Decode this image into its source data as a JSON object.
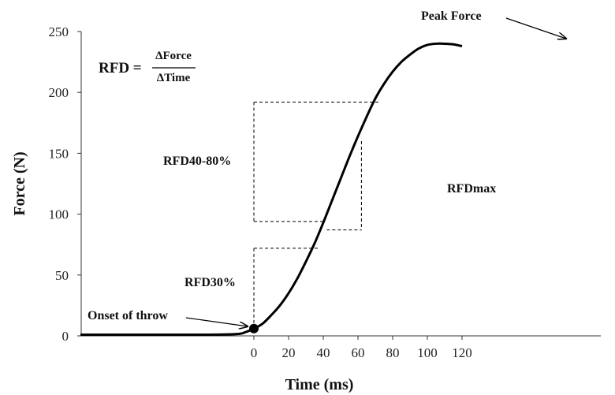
{
  "chart_data": {
    "type": "line",
    "title": "",
    "xlabel": "Time (ms)",
    "ylabel": "Force (N)",
    "xlim": [
      -100,
      120
    ],
    "ylim": [
      0,
      250
    ],
    "x_ticks": [
      0,
      20,
      40,
      60,
      80,
      100,
      120
    ],
    "y_ticks": [
      0,
      50,
      100,
      150,
      200,
      250
    ],
    "grid": false,
    "series": [
      {
        "x": [
          -100,
          -30,
          -10,
          -5,
          0,
          5,
          10,
          15,
          20,
          25,
          30,
          35,
          40,
          45,
          50,
          55,
          60,
          65,
          70,
          75,
          80,
          85,
          90,
          95,
          100,
          105,
          110,
          115,
          120
        ],
        "y": [
          1,
          1,
          1.5,
          3,
          6,
          10,
          17,
          25,
          35,
          47,
          61,
          76,
          93,
          111,
          129,
          147,
          164,
          180,
          195,
          207,
          217,
          225,
          231,
          236,
          239,
          240,
          240,
          239.5,
          238
        ]
      }
    ],
    "onset_point": {
      "x": 0,
      "y": 6
    },
    "formula": {
      "lhs": "RFD =",
      "numerator": "ΔForce",
      "denominator": "ΔTime"
    },
    "annotations": {
      "peak_force": "Peak Force",
      "onset": "Onset of throw",
      "rfd40_80": "RFD40-80%",
      "rfdmax": "RFDmax",
      "rfd30": "RFD30%"
    },
    "boxes": {
      "rfd40_80": {
        "x0": 0,
        "x1": 72,
        "y0": 94,
        "y1": 192
      },
      "rfdmax": {
        "x0": 42,
        "x1": 62,
        "y0": 87,
        "y1": 160
      },
      "rfd30": {
        "x0": 0,
        "x1": 37,
        "y0": 6,
        "y1": 72
      }
    }
  }
}
